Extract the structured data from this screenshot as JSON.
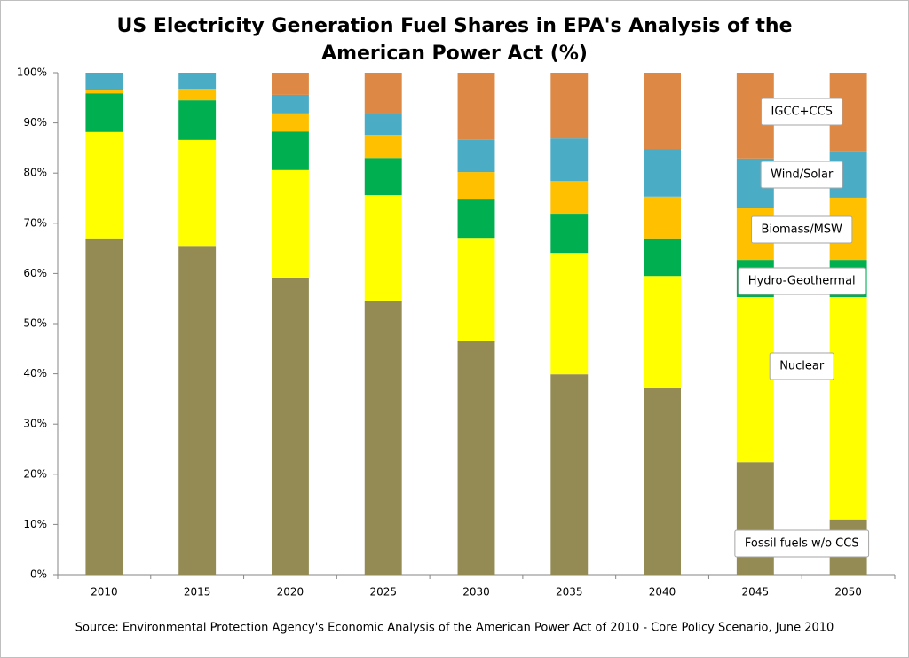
{
  "chart_data": {
    "type": "stacked_bar",
    "title": "US Electricity Generation Fuel Shares in EPA's Analysis of the American Power Act (%)",
    "source": "Source: Environmental Protection Agency's Economic Analysis of  the American Power Act of 2010  - Core Policy Scenario, June 2010",
    "categories": [
      "2010",
      "2015",
      "2020",
      "2025",
      "2030",
      "2035",
      "2040",
      "2045",
      "2050"
    ],
    "series": [
      {
        "name": "Fossil fuels w/o CCS",
        "color": "#948a54",
        "values": [
          67.0,
          65.5,
          59.2,
          54.6,
          46.5,
          39.9,
          37.1,
          22.4,
          11.0
        ]
      },
      {
        "name": "Nuclear",
        "color": "#ffff00",
        "values": [
          21.2,
          21.1,
          21.4,
          21.0,
          20.6,
          24.2,
          22.4,
          32.9,
          44.3
        ]
      },
      {
        "name": "Hydro-Geothermal",
        "color": "#00b050",
        "values": [
          7.7,
          7.9,
          7.7,
          7.4,
          7.8,
          7.8,
          7.5,
          7.4,
          7.4
        ]
      },
      {
        "name": "Biomass/MSW",
        "color": "#ffc000",
        "values": [
          0.7,
          2.3,
          3.6,
          4.6,
          5.3,
          6.5,
          8.3,
          10.3,
          12.4
        ]
      },
      {
        "name": "Wind/Solar",
        "color": "#4bacc6",
        "values": [
          3.4,
          3.2,
          3.7,
          4.1,
          6.4,
          8.5,
          9.5,
          9.9,
          9.2
        ]
      },
      {
        "name": "IGCC+CCS",
        "color": "#dd8844",
        "values": [
          0,
          0,
          4.4,
          8.3,
          13.4,
          13.1,
          15.2,
          17.1,
          15.7
        ]
      }
    ],
    "ylim": [
      0,
      100
    ],
    "yticks": [
      {
        "value": 0,
        "label": "0%"
      },
      {
        "value": 10,
        "label": "10%"
      },
      {
        "value": 20,
        "label": "20%"
      },
      {
        "value": 30,
        "label": "30%"
      },
      {
        "value": 40,
        "label": "40%"
      },
      {
        "value": 50,
        "label": "50%"
      },
      {
        "value": 60,
        "label": "60%"
      },
      {
        "value": 70,
        "label": "70%"
      },
      {
        "value": 80,
        "label": "80%"
      },
      {
        "value": 90,
        "label": "90%"
      },
      {
        "value": 100,
        "label": "100%"
      }
    ],
    "grid": false
  }
}
